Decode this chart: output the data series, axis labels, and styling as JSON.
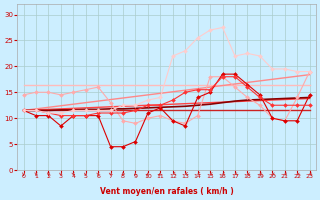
{
  "title": "",
  "xlabel": "Vent moyen/en rafales ( km/h )",
  "ylabel": "",
  "xlim": [
    -0.5,
    23.5
  ],
  "ylim": [
    0,
    32
  ],
  "xticks": [
    0,
    1,
    2,
    3,
    4,
    5,
    6,
    7,
    8,
    9,
    10,
    11,
    12,
    13,
    14,
    15,
    16,
    17,
    18,
    19,
    20,
    21,
    22,
    23
  ],
  "yticks": [
    0,
    5,
    10,
    15,
    20,
    25,
    30
  ],
  "bg_color": "#cceeff",
  "grid_color": "#aacccc",
  "xlabel_color": "#cc0000",
  "tick_color": "#cc0000",
  "lines": [
    {
      "x": [
        0,
        1,
        2,
        3,
        4,
        5,
        6,
        7,
        8,
        9,
        10,
        11,
        12,
        13,
        14,
        15,
        16,
        17,
        18,
        19,
        20,
        21,
        22,
        23
      ],
      "y": [
        16.5,
        16.5,
        16.5,
        16.5,
        16.5,
        16.5,
        16.5,
        16.5,
        16.5,
        16.5,
        16.5,
        16.5,
        16.5,
        16.5,
        16.5,
        16.5,
        16.5,
        16.5,
        16.5,
        16.5,
        16.5,
        16.5,
        16.5,
        16.5
      ],
      "color": "#ffbbbb",
      "lw": 1.0,
      "marker": null
    },
    {
      "x": [
        0,
        1,
        2,
        3,
        4,
        5,
        6,
        7,
        8,
        9,
        10,
        11,
        12,
        13,
        14,
        15,
        16,
        17,
        18,
        19,
        20,
        21,
        22,
        23
      ],
      "y": [
        11.5,
        11.5,
        11.5,
        11.5,
        11.5,
        11.5,
        11.5,
        11.5,
        11.5,
        11.5,
        11.5,
        11.5,
        11.5,
        11.5,
        11.5,
        11.5,
        11.5,
        11.5,
        11.5,
        11.5,
        11.5,
        11.5,
        11.5,
        11.5
      ],
      "color": "#cc2222",
      "lw": 1.0,
      "marker": null
    },
    {
      "x": [
        0,
        1,
        2,
        3,
        4,
        5,
        6,
        7,
        8,
        9,
        10,
        11,
        12,
        13,
        14,
        15,
        16,
        17,
        18,
        19,
        20,
        21,
        22,
        23
      ],
      "y": [
        11.5,
        11.8,
        12.1,
        12.4,
        12.7,
        13.0,
        13.3,
        13.6,
        13.9,
        14.2,
        14.5,
        14.8,
        15.1,
        15.4,
        15.7,
        16.0,
        16.3,
        16.6,
        16.9,
        17.2,
        17.5,
        17.8,
        18.1,
        18.4
      ],
      "color": "#ff8888",
      "lw": 1.0,
      "marker": null
    },
    {
      "x": [
        0,
        1,
        2,
        3,
        4,
        5,
        6,
        7,
        8,
        9,
        10,
        11,
        12,
        13,
        14,
        15,
        16,
        17,
        18,
        19,
        20,
        21,
        22,
        23
      ],
      "y": [
        11.5,
        11.6,
        11.7,
        11.8,
        11.9,
        12.0,
        12.1,
        12.2,
        12.3,
        12.4,
        12.5,
        12.6,
        12.7,
        12.8,
        12.9,
        13.0,
        13.1,
        13.2,
        13.3,
        13.4,
        13.5,
        13.6,
        13.7,
        13.8
      ],
      "color": "#ff4444",
      "lw": 1.0,
      "marker": null
    },
    {
      "x": [
        0,
        1,
        2,
        3,
        4,
        5,
        6,
        7,
        8,
        9,
        10,
        11,
        12,
        13,
        14,
        15,
        16,
        17,
        18,
        19,
        20,
        21,
        22,
        23
      ],
      "y": [
        11.5,
        11.5,
        11.5,
        11.6,
        11.6,
        11.7,
        11.7,
        11.8,
        11.8,
        11.9,
        12.0,
        12.1,
        12.2,
        12.3,
        12.5,
        12.7,
        13.0,
        13.3,
        13.5,
        13.6,
        13.7,
        13.8,
        13.9,
        14.0
      ],
      "color": "#880000",
      "lw": 1.2,
      "marker": null
    },
    {
      "x": [
        0,
        1,
        2,
        3,
        4,
        5,
        6,
        7,
        8,
        9,
        10,
        11,
        12,
        13,
        14,
        15,
        16,
        17,
        18,
        19,
        20,
        21,
        22,
        23
      ],
      "y": [
        14.5,
        15.0,
        15.0,
        14.5,
        15.0,
        15.5,
        16.0,
        13.0,
        9.5,
        9.0,
        10.0,
        10.5,
        9.5,
        9.0,
        10.5,
        18.0,
        18.0,
        16.0,
        14.0,
        12.5,
        10.0,
        9.5,
        14.0,
        19.0
      ],
      "color": "#ffaaaa",
      "lw": 0.8,
      "marker": "D",
      "markersize": 2.0
    },
    {
      "x": [
        0,
        1,
        2,
        3,
        4,
        5,
        6,
        7,
        8,
        9,
        10,
        11,
        12,
        13,
        14,
        15,
        16,
        17,
        18,
        19,
        20,
        21,
        22,
        23
      ],
      "y": [
        11.5,
        10.5,
        10.5,
        8.5,
        10.5,
        10.5,
        10.5,
        4.5,
        4.5,
        5.5,
        11.0,
        12.0,
        9.5,
        8.5,
        14.0,
        15.0,
        18.5,
        18.5,
        16.5,
        14.5,
        10.0,
        9.5,
        9.5,
        14.5
      ],
      "color": "#dd0000",
      "lw": 0.8,
      "marker": "D",
      "markersize": 2.0
    },
    {
      "x": [
        0,
        1,
        2,
        3,
        4,
        5,
        6,
        7,
        8,
        9,
        10,
        11,
        12,
        13,
        14,
        15,
        16,
        17,
        18,
        19,
        20,
        21,
        22,
        23
      ],
      "y": [
        11.5,
        11.5,
        11.0,
        10.5,
        10.5,
        10.5,
        11.0,
        11.0,
        11.0,
        11.5,
        12.5,
        12.5,
        13.5,
        15.0,
        15.5,
        15.5,
        18.0,
        18.0,
        16.0,
        14.0,
        12.5,
        12.5,
        12.5,
        12.5
      ],
      "color": "#ff3333",
      "lw": 0.8,
      "marker": "D",
      "markersize": 2.0
    },
    {
      "x": [
        0,
        1,
        2,
        3,
        4,
        5,
        6,
        7,
        8,
        9,
        10,
        11,
        12,
        13,
        14,
        15,
        16,
        17,
        18,
        19,
        20,
        21,
        22,
        23
      ],
      "y": [
        11.5,
        11.5,
        11.0,
        11.0,
        11.5,
        11.5,
        11.5,
        11.5,
        12.5,
        12.5,
        13.5,
        14.0,
        22.0,
        23.0,
        25.5,
        27.0,
        27.5,
        22.0,
        22.5,
        22.0,
        19.5,
        19.5,
        19.0,
        19.0
      ],
      "color": "#ffcccc",
      "lw": 0.8,
      "marker": "D",
      "markersize": 2.0
    }
  ],
  "arrows": {
    "color": "#cc2222",
    "angles_deg": [
      180,
      180,
      180,
      175,
      175,
      175,
      175,
      175,
      195,
      205,
      215,
      220,
      228,
      233,
      238,
      243,
      248,
      253,
      253,
      258,
      258,
      263,
      268,
      263
    ]
  }
}
